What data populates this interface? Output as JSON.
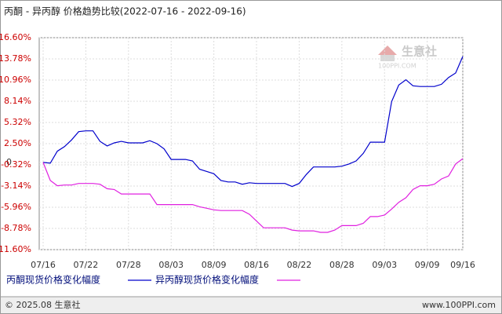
{
  "chart_data": {
    "type": "line",
    "title": "丙酮 - 异丙醇 价格趋势比较(2022-07-16 - 2022-09-16)",
    "categories": [
      "07/16",
      null,
      null,
      null,
      null,
      null,
      "07/22",
      null,
      null,
      null,
      null,
      null,
      "07/28",
      null,
      null,
      null,
      null,
      null,
      "08/03",
      null,
      null,
      null,
      null,
      null,
      "08/09",
      null,
      null,
      null,
      null,
      null,
      "08/16",
      null,
      null,
      null,
      null,
      null,
      "08/22",
      null,
      null,
      null,
      null,
      null,
      "08/28",
      null,
      null,
      null,
      null,
      null,
      "09/03",
      null,
      null,
      null,
      null,
      null,
      "09/09",
      null,
      null,
      null,
      null,
      "09/16"
    ],
    "series": [
      {
        "name": "丙酮现货价格变化幅度",
        "color": "#0000cc",
        "values": [
          0.0,
          -0.1,
          1.5,
          2.1,
          3.0,
          4.1,
          4.2,
          4.2,
          2.8,
          2.2,
          2.6,
          2.8,
          2.6,
          2.6,
          2.6,
          2.9,
          2.5,
          1.8,
          0.4,
          0.4,
          0.4,
          0.2,
          -0.9,
          -1.2,
          -1.5,
          -2.4,
          -2.6,
          -2.6,
          -2.9,
          -2.7,
          -2.8,
          -2.8,
          -2.8,
          -2.8,
          -2.8,
          -3.2,
          -2.8,
          -1.6,
          -0.6,
          -0.6,
          -0.6,
          -0.6,
          -0.5,
          -0.2,
          0.2,
          1.2,
          2.7,
          2.7,
          2.7,
          8.1,
          10.3,
          11.0,
          10.2,
          10.1,
          10.1,
          10.1,
          10.4,
          11.3,
          11.9,
          14.1
        ]
      },
      {
        "name": "异丙醇现货价格变化幅度",
        "color": "#e020e0",
        "values": [
          0.0,
          -2.4,
          -3.1,
          -3.0,
          -3.0,
          -2.8,
          -2.8,
          -2.8,
          -2.9,
          -3.5,
          -3.6,
          -4.2,
          -4.2,
          -4.2,
          -4.2,
          -4.2,
          -5.6,
          -5.6,
          -5.6,
          -5.6,
          -5.6,
          -5.6,
          -5.9,
          -6.1,
          -6.3,
          -6.4,
          -6.4,
          -6.4,
          -6.4,
          -6.9,
          -7.8,
          -8.7,
          -8.7,
          -8.7,
          -8.7,
          -9.0,
          -9.1,
          -9.1,
          -9.1,
          -9.3,
          -9.3,
          -9.0,
          -8.4,
          -8.4,
          -8.4,
          -8.1,
          -7.2,
          -7.2,
          -7.0,
          -6.2,
          -5.3,
          -4.7,
          -3.6,
          -3.1,
          -3.1,
          -2.9,
          -2.2,
          -1.8,
          -0.2,
          0.5
        ]
      }
    ],
    "ylim": [
      -11.6,
      16.6
    ],
    "yticks": [
      {
        "value": 16.6,
        "label": "16.60%"
      },
      {
        "value": 13.78,
        "label": "13.78%"
      },
      {
        "value": 10.96,
        "label": "10.96%"
      },
      {
        "value": 8.14,
        "label": "8.14%"
      },
      {
        "value": 5.32,
        "label": "5.32%"
      },
      {
        "value": 2.5,
        "label": "2.50%"
      },
      0,
      {
        "value": -0.32,
        "label": "-0.32%"
      },
      {
        "value": -3.14,
        "label": "-3.14%"
      },
      {
        "value": -5.96,
        "label": "-5.96%"
      },
      {
        "value": -8.78,
        "label": "-8.78%"
      },
      {
        "value": -11.6,
        "label": "-11.60%"
      }
    ],
    "grid": true,
    "watermark": {
      "brand": "生意社",
      "site": "100PPI.COM"
    },
    "footer": {
      "copyright": "© 2025.08 生意社",
      "url": "www.100PPI.com"
    }
  }
}
